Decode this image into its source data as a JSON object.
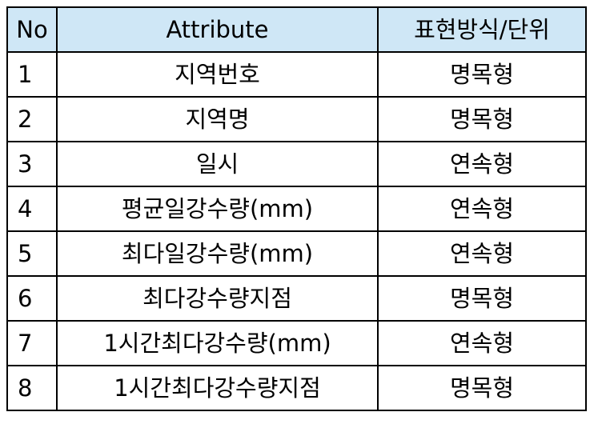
{
  "table": {
    "headers": {
      "no": "No",
      "attribute": "Attribute",
      "representation": "표현방식/단위"
    },
    "rows": [
      {
        "no": "1",
        "attribute": "지역번호",
        "representation": "명목형"
      },
      {
        "no": "2",
        "attribute": "지역명",
        "representation": "명목형"
      },
      {
        "no": "3",
        "attribute": "일시",
        "representation": "연속형"
      },
      {
        "no": "4",
        "attribute": "평균일강수량(mm)",
        "representation": "연속형"
      },
      {
        "no": "5",
        "attribute": "최다일강수량(mm)",
        "representation": "연속형"
      },
      {
        "no": "6",
        "attribute": "최다강수량지점",
        "representation": "명목형"
      },
      {
        "no": "7",
        "attribute": "1시간최다강수량(mm)",
        "representation": "연속형"
      },
      {
        "no": "8",
        "attribute": "1시간최다강수량지점",
        "representation": "명목형"
      }
    ],
    "header_bg_color": "#cfe7f6",
    "border_color": "#000000"
  }
}
